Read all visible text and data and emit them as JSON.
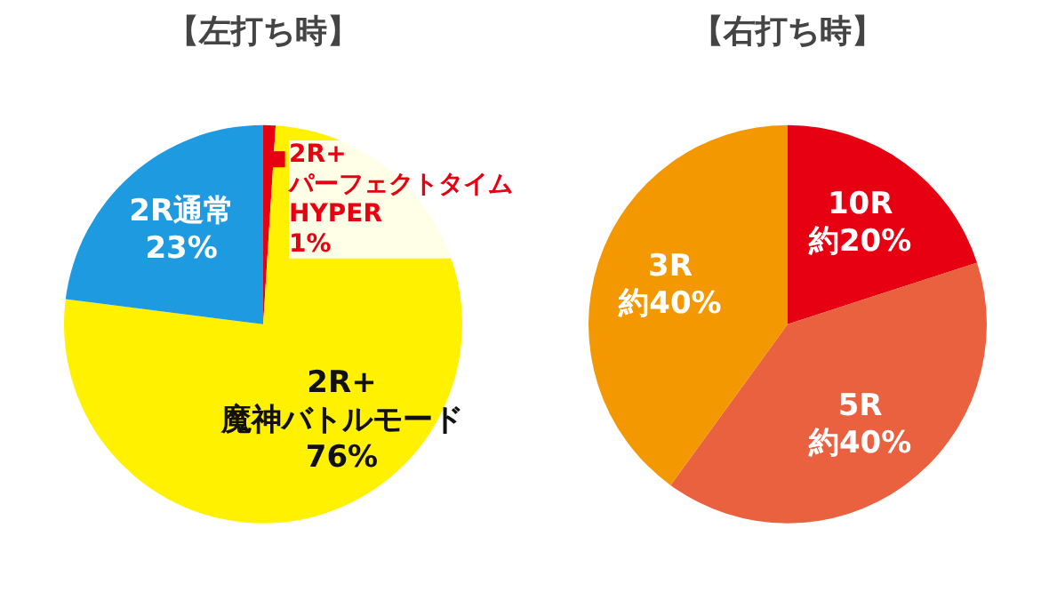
{
  "chart_data": [
    {
      "type": "pie",
      "title": "【左打ち時】",
      "categories": [
        "2R+パーフェクトタイムHYPER",
        "2R+魔神バトルモード",
        "2R通常"
      ],
      "values": [
        1,
        76,
        23
      ],
      "colors": [
        "#e60012",
        "#fff100",
        "#1e9be0"
      ],
      "value_labels": [
        "1%",
        "76%",
        "23%"
      ]
    },
    {
      "type": "pie",
      "title": "【右打ち時】",
      "categories": [
        "10R",
        "5R",
        "3R"
      ],
      "values": [
        20,
        40,
        40
      ],
      "colors": [
        "#e60012",
        "#ea6140",
        "#f39800"
      ],
      "value_labels": [
        "約20%",
        "約40%",
        "約40%"
      ]
    }
  ]
}
